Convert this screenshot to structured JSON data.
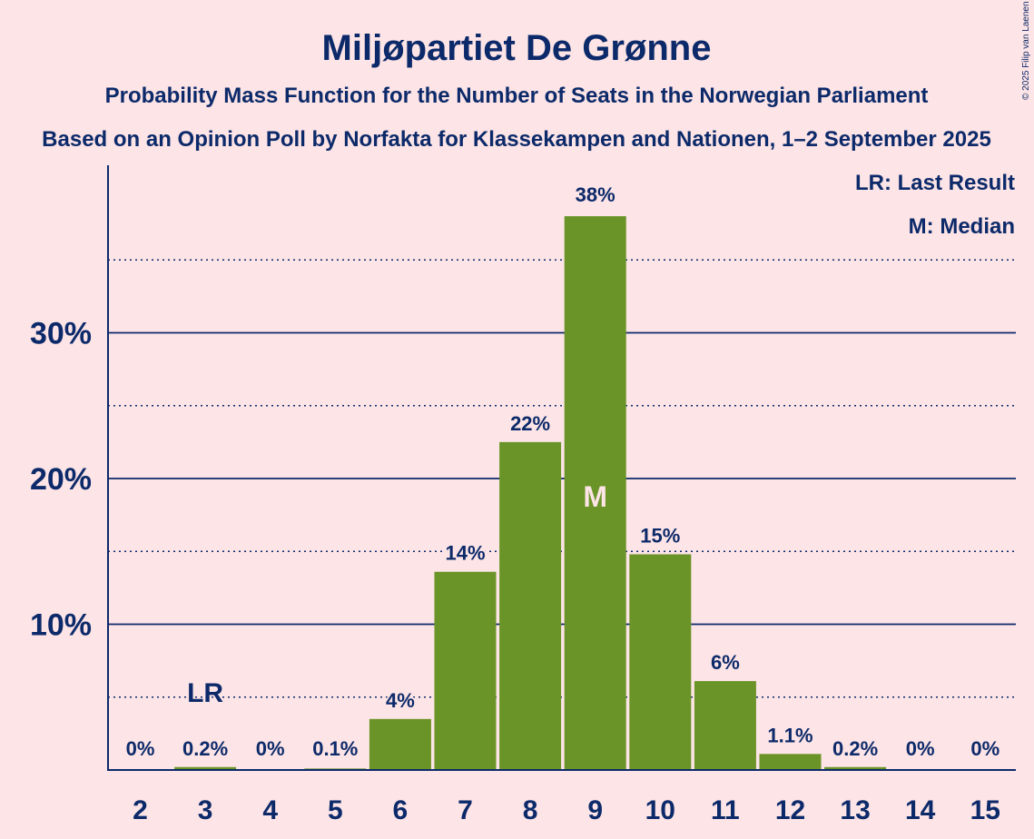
{
  "chart_data": {
    "type": "bar",
    "title": "Miljøpartiet De Grønne",
    "subtitle": "Probability Mass Function for the Number of Seats in the Norwegian Parliament",
    "subtitle2": "Based on an Opinion Poll by Norfakta for Klassekampen and Nationen, 1–2 September 2025",
    "categories": [
      "2",
      "3",
      "4",
      "5",
      "6",
      "7",
      "8",
      "9",
      "10",
      "11",
      "12",
      "13",
      "14",
      "15"
    ],
    "values": [
      0,
      0.2,
      0,
      0.1,
      3.5,
      13.6,
      22.5,
      38,
      14.8,
      6.1,
      1.1,
      0.2,
      0,
      0
    ],
    "value_labels": [
      "0%",
      "0.2%",
      "0%",
      "0.1%",
      "4%",
      "14%",
      "22%",
      "38%",
      "15%",
      "6%",
      "1.1%",
      "0.2%",
      "0%",
      "0%"
    ],
    "ylim": [
      0,
      41
    ],
    "yticks": [
      10,
      20,
      30
    ],
    "ytick_labels": [
      "10%",
      "20%",
      "30%"
    ],
    "minor_grid": [
      5,
      15,
      25,
      35
    ],
    "last_result_category": "3",
    "last_result_marker": "LR",
    "median_category": "9",
    "median_marker": "M",
    "legend": [
      "LR: Last Result",
      "M: Median"
    ],
    "legend_position": "top-right",
    "bar_color": "#6A9427",
    "text_color": "#0C2A6A",
    "background_color": "#FDE4E6"
  },
  "copyright": "© 2025 Filip van Laenen"
}
